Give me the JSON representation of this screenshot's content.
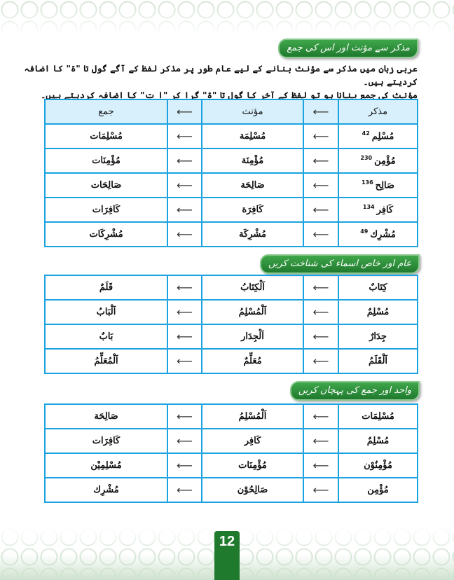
{
  "section1": {
    "title": "مذکر سے مؤنث اور اس کی جمع",
    "intro": [
      "عربی زبان میں مذکر سے مؤنث بنانے کے لیے عام طور پر مذکر لفظ کے آگے گول تا \"ۃ\" کا اضافہ کردیتے ہیں۔",
      "مؤنث کی جمع بنانا ہو تو لفظ کے آخر کا گول تا \"ۃ\" گرا کر \"ا ت\" کا اضافہ کردیتے ہیں۔"
    ],
    "headers": [
      "مذکر",
      "مؤنث",
      "جمع"
    ],
    "arrow": "⟵",
    "rows": [
      {
        "a": "مُسْلِم",
        "ref": "42",
        "b": "مُسْلِمَة",
        "c": "مُسْلِمَات"
      },
      {
        "a": "مُؤْمِن",
        "ref": "230",
        "b": "مُؤْمِنَة",
        "c": "مُؤْمِنَات"
      },
      {
        "a": "صَالِح",
        "ref": "136",
        "b": "صَالِحَة",
        "c": "صَالِحَات"
      },
      {
        "a": "كَافِر",
        "ref": "134",
        "b": "كَافِرَة",
        "c": "كَافِرَات"
      },
      {
        "a": "مُشْرِك",
        "ref": "49",
        "b": "مُشْرِكَة",
        "c": "مُشْرِكَات"
      }
    ]
  },
  "section2": {
    "title": "عام اور خاص اسماء کی شناخت کریں",
    "rows": [
      {
        "a": "كِتَابٌ",
        "b": "اَلْكِتَابُ",
        "c": "قَلَمٌ"
      },
      {
        "a": "مُسْلِمٌ",
        "b": "اَلْمُسْلِمُ",
        "c": "اَلْبَابُ"
      },
      {
        "a": "جِدَارٌ",
        "b": "اَلْجِدَار",
        "c": "بَابٌ"
      },
      {
        "a": "اَلْقَلَمُ",
        "b": "مُعَلِّمٌ",
        "c": "اَلْمُعَلِّمُ"
      }
    ]
  },
  "section3": {
    "title": "واحد اور جمع کی پہچان کریں",
    "rows": [
      {
        "a": "مُسْلِمَات",
        "b": "اَلْمُسْلِمُ",
        "c": "صَالِحَة"
      },
      {
        "a": "مُسْلِمٌ",
        "b": "كَافِر",
        "c": "كَافِرَات"
      },
      {
        "a": "مُؤْمِنُوْن",
        "b": "مُؤْمِنَات",
        "c": "مُسْلِمِيْن"
      },
      {
        "a": "مُؤْمِن",
        "b": "صَالِحُوْن",
        "c": "مُشْرِك"
      }
    ]
  },
  "page_number": "12",
  "colors": {
    "green": "#1f7a2e",
    "table_border": "#1aa3e0",
    "header_bg": "#d7f0fb"
  }
}
